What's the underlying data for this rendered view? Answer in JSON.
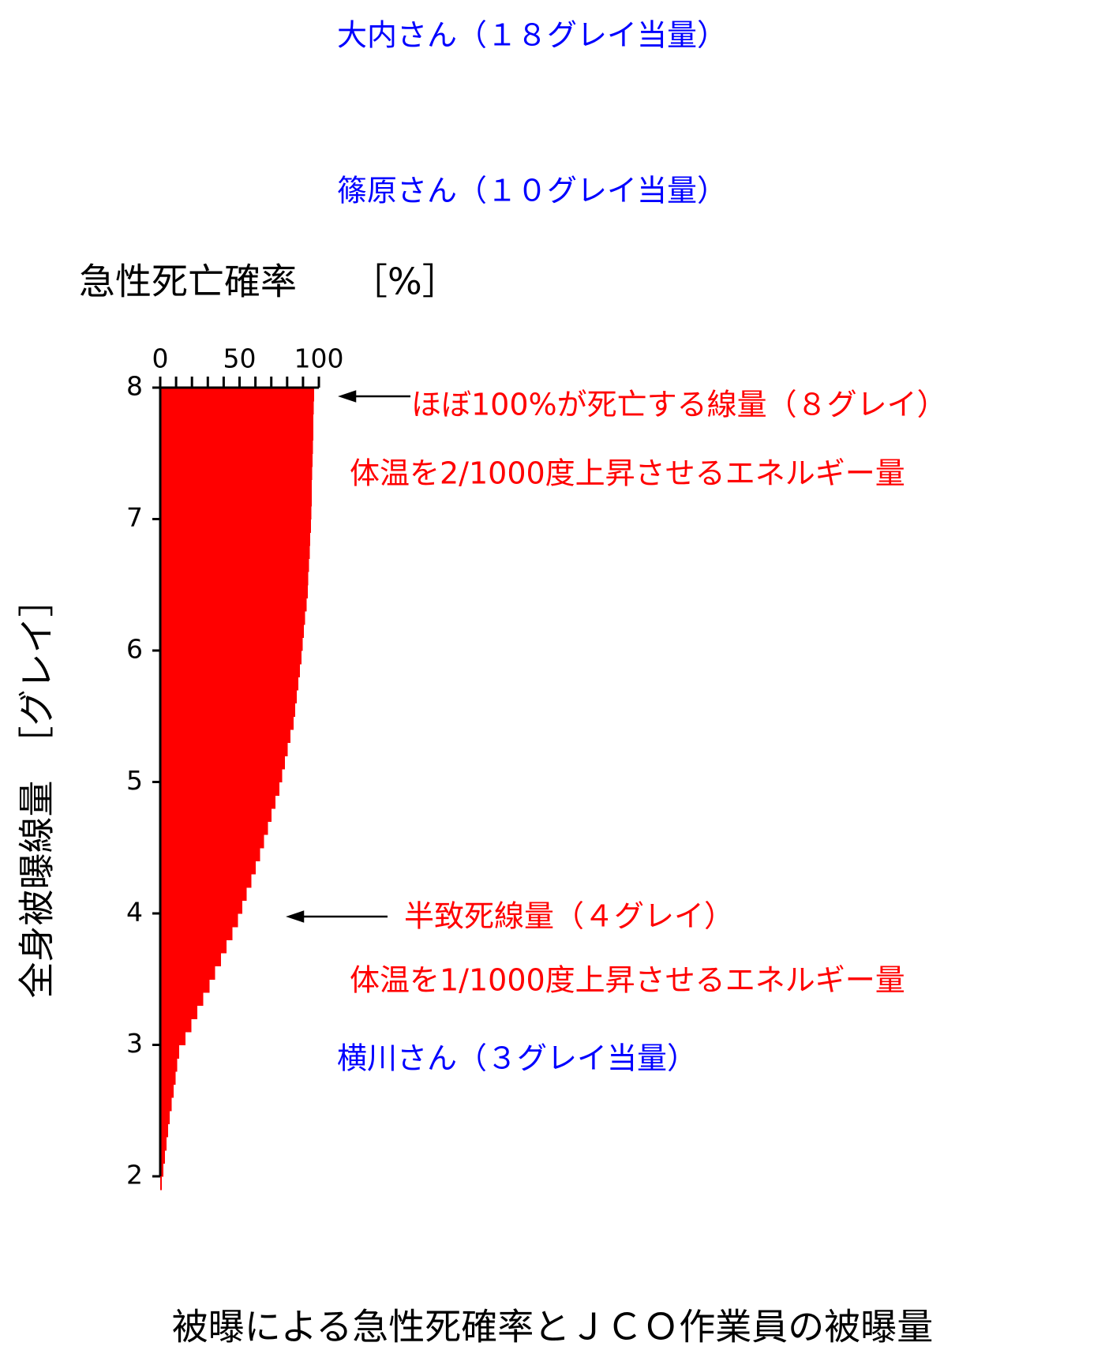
{
  "chart_data": {
    "type": "bar",
    "orientation": "horizontal",
    "title": "被曝による急性死確率とＪＣＯ作業員の被曝量",
    "xlabel": "急性死亡確率　　［%］",
    "ylabel": "全身被曝線量　［グレイ］",
    "color": "#ff0000",
    "y": [
      2.0,
      2.1,
      2.2,
      2.3,
      2.4,
      2.5,
      2.6,
      2.7,
      2.8,
      2.9,
      3.0,
      3.1,
      3.2,
      3.3,
      3.4,
      3.5,
      3.6,
      3.7,
      3.8,
      3.9,
      4.0,
      4.1,
      4.2,
      4.3,
      4.4,
      4.5,
      4.6,
      4.7,
      4.8,
      4.9,
      5.0,
      5.1,
      5.2,
      5.3,
      5.4,
      5.5,
      5.6,
      5.7,
      5.8,
      5.9,
      6.0,
      6.1,
      6.2,
      6.3,
      6.4,
      6.5,
      6.6,
      6.7,
      6.8,
      6.9,
      7.0,
      7.1,
      7.2,
      7.3,
      7.4,
      7.5,
      7.6,
      7.7,
      7.8,
      7.9,
      8.0
    ],
    "values": [
      1,
      2,
      3,
      4,
      5,
      6,
      7.2,
      8.4,
      9.6,
      10.8,
      12,
      15.8,
      19.6,
      23.4,
      27.2,
      31,
      34.6,
      38.2,
      41.8,
      45.4,
      49,
      51.8,
      54.6,
      57.4,
      60.2,
      63,
      65.4,
      67.8,
      70.2,
      72.6,
      75,
      76.8,
      78.6,
      80.4,
      82.2,
      84,
      85,
      86,
      87,
      88,
      89,
      89.8,
      90.6,
      91.4,
      92.2,
      93,
      93.4,
      93.8,
      94.2,
      94.6,
      95,
      95.2,
      95.4,
      95.6,
      95.8,
      96,
      96.2,
      96.4,
      96.6,
      96.8,
      97
    ],
    "xlim": [
      0,
      100
    ],
    "xticks": [
      0,
      50,
      100
    ],
    "xminorticks": [
      10,
      20,
      30,
      40,
      60,
      70,
      80,
      90
    ],
    "ylim": [
      2,
      8
    ],
    "yticks": [
      2,
      3,
      4,
      5,
      6,
      7,
      8
    ],
    "annotations": [
      {
        "text": "大内さん（１８グレイ当量）",
        "color": "#0000ff"
      },
      {
        "text": "篠原さん（１０グレイ当量）",
        "color": "#0000ff"
      },
      {
        "text": "ほぼ100%が死亡する線量（８グレイ）",
        "color": "#ff0000"
      },
      {
        "text": "体温を2/1000度上昇させるエネルギー量",
        "color": "#ff0000"
      },
      {
        "text": "半致死線量（４グレイ）",
        "color": "#ff0000"
      },
      {
        "text": "体温を1/1000度上昇させるエネルギー量",
        "color": "#ff0000"
      },
      {
        "text": "横川さん（３グレイ当量）",
        "color": "#0000ff"
      }
    ]
  }
}
